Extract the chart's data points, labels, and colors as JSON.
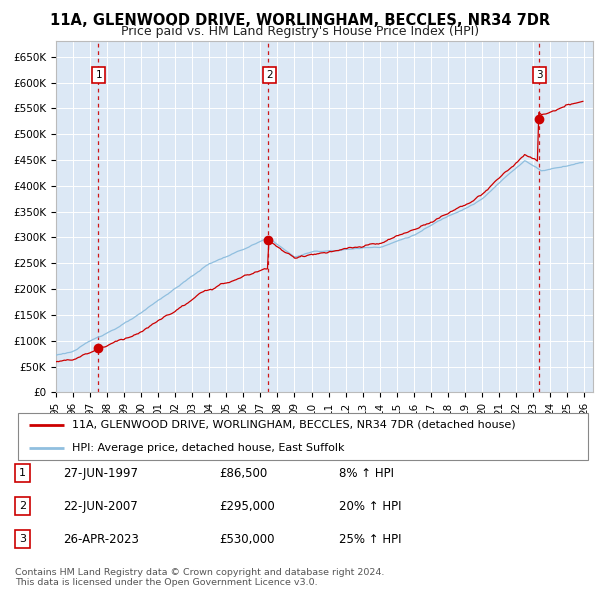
{
  "title": "11A, GLENWOOD DRIVE, WORLINGHAM, BECCLES, NR34 7DR",
  "subtitle": "Price paid vs. HM Land Registry's House Price Index (HPI)",
  "ylim": [
    0,
    680000
  ],
  "yticks": [
    0,
    50000,
    100000,
    150000,
    200000,
    250000,
    300000,
    350000,
    400000,
    450000,
    500000,
    550000,
    600000,
    650000
  ],
  "ytick_labels": [
    "£0",
    "£50K",
    "£100K",
    "£150K",
    "£200K",
    "£250K",
    "£300K",
    "£350K",
    "£400K",
    "£450K",
    "£500K",
    "£550K",
    "£600K",
    "£650K"
  ],
  "xlim_start": 1995.0,
  "xlim_end": 2026.5,
  "sale_dates": [
    1997.486,
    2007.472,
    2023.319
  ],
  "sale_prices": [
    86500,
    295000,
    530000
  ],
  "sale_labels": [
    "1",
    "2",
    "3"
  ],
  "hpi_line_color": "#90bfdf",
  "price_line_color": "#cc0000",
  "sale_dot_color": "#cc0000",
  "vline_color": "#cc0000",
  "plot_bg_color": "#dce8f5",
  "legend_line1": "11A, GLENWOOD DRIVE, WORLINGHAM, BECCLES, NR34 7DR (detached house)",
  "legend_line2": "HPI: Average price, detached house, East Suffolk",
  "table_rows": [
    {
      "num": "1",
      "date": "27-JUN-1997",
      "price": "£86,500",
      "hpi": "8% ↑ HPI"
    },
    {
      "num": "2",
      "date": "22-JUN-2007",
      "price": "£295,000",
      "hpi": "20% ↑ HPI"
    },
    {
      "num": "3",
      "date": "26-APR-2023",
      "price": "£530,000",
      "hpi": "25% ↑ HPI"
    }
  ],
  "footnote": "Contains HM Land Registry data © Crown copyright and database right 2024.\nThis data is licensed under the Open Government Licence v3.0.",
  "title_fontsize": 10.5,
  "subtitle_fontsize": 9,
  "tick_fontsize": 7.5,
  "legend_fontsize": 8,
  "table_fontsize": 8.5
}
